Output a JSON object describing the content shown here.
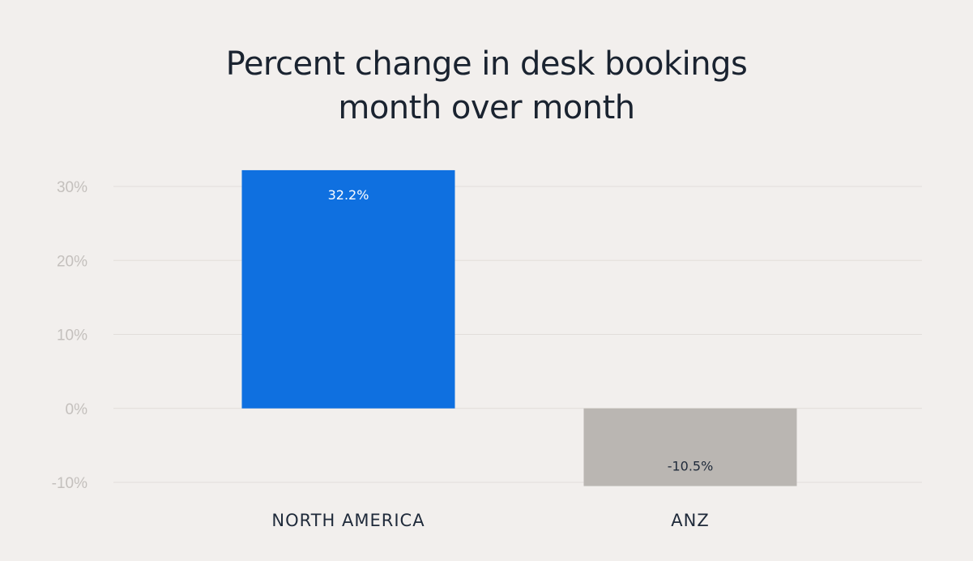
{
  "chart_data": {
    "type": "bar",
    "title": [
      "Percent change in desk bookings",
      "month over month"
    ],
    "categories": [
      "NORTH AMERICA",
      "ANZ"
    ],
    "values": [
      32.2,
      -10.5
    ],
    "value_labels": [
      "32.2%",
      "-10.5%"
    ],
    "bar_colors": [
      "#0f70e0",
      "#bab6b2"
    ],
    "value_label_colors": [
      "#ffffff",
      "#1f2a3a"
    ],
    "yticks": [
      30,
      20,
      10,
      0,
      -10
    ],
    "ytick_labels": [
      "30%",
      "20%",
      "10%",
      "0%",
      "-10%"
    ],
    "ylim": [
      -10,
      30
    ],
    "xlabel": "",
    "ylabel": "",
    "grid": true,
    "legend": "none"
  }
}
